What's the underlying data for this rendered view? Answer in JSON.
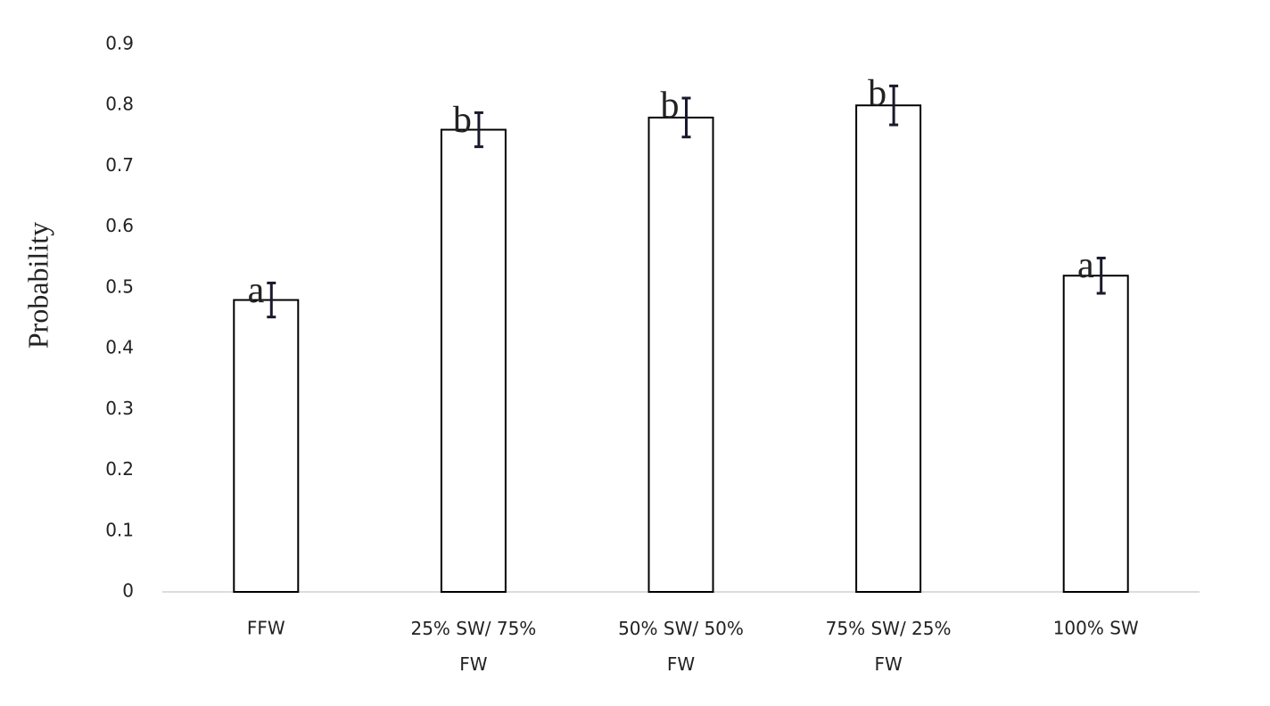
{
  "chart_data": {
    "type": "bar",
    "y_label": "Probability",
    "categories": [
      "FFW",
      "25% SW/ 75% FW",
      "50% SW/ 50% FW",
      "75% SW/ 25% FW",
      "100% SW"
    ],
    "values": [
      0.48,
      0.76,
      0.78,
      0.8,
      0.52
    ],
    "errors": [
      0.028,
      0.028,
      0.032,
      0.032,
      0.029
    ],
    "annotations": [
      "a",
      "b",
      "b",
      "b",
      "a"
    ],
    "color": "#ffffff",
    "ylim": [
      0,
      0.9
    ],
    "yticks": [
      0,
      0.1,
      0.2,
      0.3,
      0.4,
      0.5,
      0.6,
      0.7,
      0.8,
      0.9
    ],
    "grid": false
  }
}
